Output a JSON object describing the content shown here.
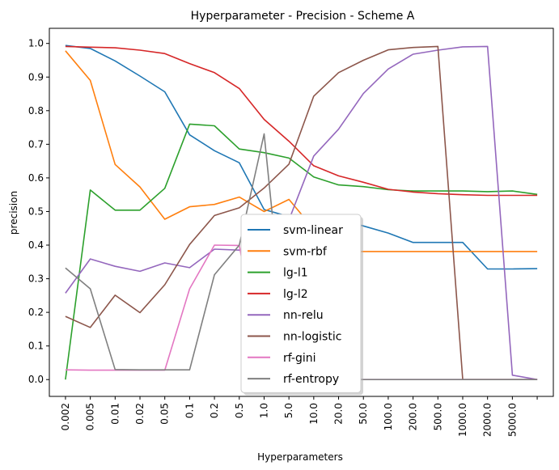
{
  "chart_data": {
    "type": "line",
    "title": "Hyperparameter - Precision - Scheme A",
    "xlabel": "Hyperparameters",
    "ylabel": "precision",
    "categories": [
      "0.002",
      "0.005",
      "0.01",
      "0.02",
      "0.05",
      "0.1",
      "0.2",
      "0.5",
      "1.0",
      "5.0",
      "10.0",
      "20.0",
      "50.0",
      "100.0",
      "200.0",
      "500.0",
      "1000.0",
      "2000.0",
      "5000.0",
      ""
    ],
    "ylim": [
      -0.05,
      1.045
    ],
    "yticks": [
      "0.0",
      "0.1",
      "0.2",
      "0.3",
      "0.4",
      "0.5",
      "0.6",
      "0.7",
      "0.8",
      "0.9",
      "1.0"
    ],
    "ytick_values": [
      0.0,
      0.1,
      0.2,
      0.3,
      0.4,
      0.5,
      0.6,
      0.7,
      0.8,
      0.9,
      1.0
    ],
    "grid": false,
    "legend_placement": "lower center",
    "series": [
      {
        "name": "svm-linear",
        "color": "#1f77b4",
        "values": [
          0.994,
          0.985,
          0.948,
          0.903,
          0.856,
          0.728,
          0.681,
          0.645,
          0.506,
          0.485,
          0.48,
          0.478,
          0.457,
          0.436,
          0.408,
          0.408,
          0.408,
          0.329,
          0.329,
          0.33
        ]
      },
      {
        "name": "svm-rbf",
        "color": "#ff7f0e",
        "values": [
          0.978,
          0.89,
          0.64,
          0.573,
          0.477,
          0.514,
          0.521,
          0.543,
          0.5,
          0.536,
          0.448,
          0.381,
          0.381,
          0.381,
          0.381,
          0.381,
          0.381,
          0.381,
          0.381,
          0.381
        ]
      },
      {
        "name": "lg-l1",
        "color": "#2ca02c",
        "values": [
          0.0,
          0.564,
          0.504,
          0.504,
          0.569,
          0.76,
          0.755,
          0.686,
          0.675,
          0.659,
          0.603,
          0.579,
          0.574,
          0.565,
          0.561,
          0.561,
          0.561,
          0.559,
          0.561,
          0.551
        ]
      },
      {
        "name": "lg-l2",
        "color": "#d62728",
        "values": [
          0.991,
          0.989,
          0.987,
          0.98,
          0.97,
          0.94,
          0.913,
          0.866,
          0.774,
          0.709,
          0.636,
          0.606,
          0.587,
          0.566,
          0.558,
          0.553,
          0.55,
          0.548,
          0.548,
          0.548
        ]
      },
      {
        "name": "nn-relu",
        "color": "#9467bd",
        "values": [
          0.257,
          0.359,
          0.337,
          0.322,
          0.347,
          0.333,
          0.388,
          0.385,
          0.4,
          0.475,
          0.665,
          0.745,
          0.851,
          0.924,
          0.968,
          0.98,
          0.99,
          0.991,
          0.013,
          0.0
        ]
      },
      {
        "name": "nn-logistic",
        "color": "#8c564b",
        "values": [
          0.188,
          0.155,
          0.251,
          0.199,
          0.282,
          0.402,
          0.488,
          0.511,
          0.57,
          0.641,
          0.843,
          0.913,
          0.95,
          0.981,
          0.988,
          0.991,
          0.0,
          0.0,
          0.0,
          0.0
        ]
      },
      {
        "name": "rf-gini",
        "color": "#e377c2",
        "values": [
          0.029,
          0.028,
          0.028,
          0.028,
          0.028,
          0.27,
          0.4,
          0.399,
          0.0,
          0.0,
          0.0,
          0.0,
          0.0,
          0.0,
          0.0,
          0.0,
          0.0,
          0.0,
          0.0,
          0.0
        ]
      },
      {
        "name": "rf-entropy",
        "color": "#7f7f7f",
        "values": [
          0.332,
          0.27,
          0.03,
          0.029,
          0.029,
          0.029,
          0.312,
          0.4,
          0.731,
          0.0,
          0.0,
          0.0,
          0.0,
          0.0,
          0.0,
          0.0,
          0.0,
          0.0,
          0.0,
          0.0
        ]
      }
    ]
  }
}
